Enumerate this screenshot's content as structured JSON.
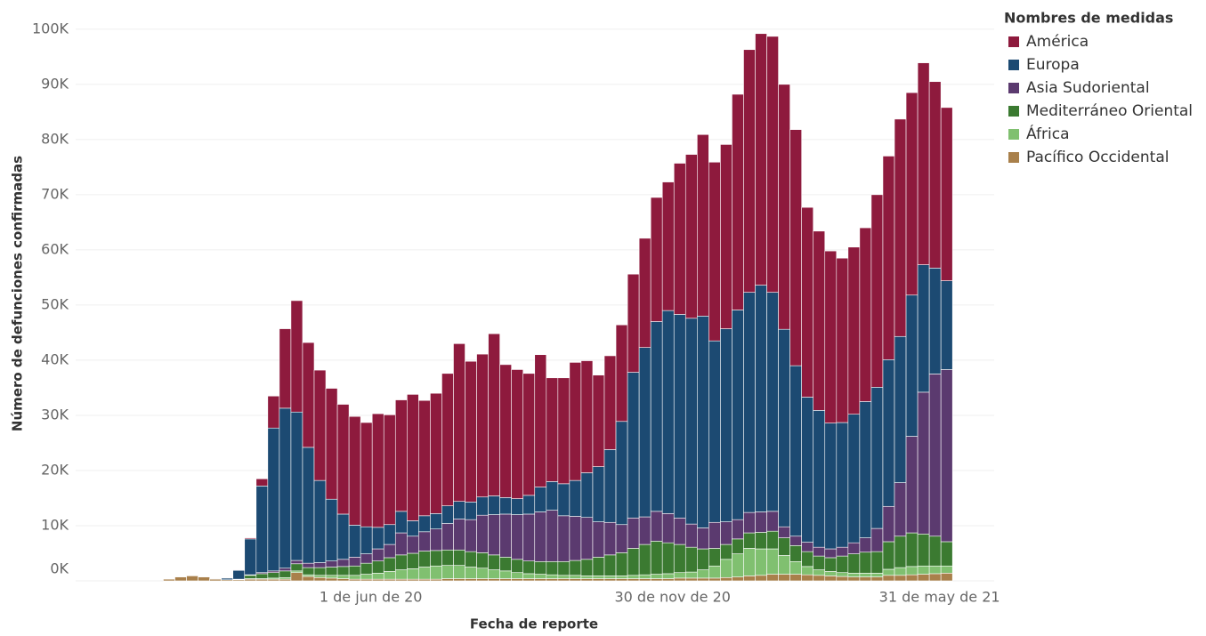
{
  "chart_data": {
    "type": "stacked_bar",
    "x_label": "Fecha de reporte",
    "y_label": "Número de defunciones confirmadas",
    "legend_title": "Nombres de medidas",
    "legend": "right",
    "grid": true,
    "categories": [
      null,
      null,
      null,
      null,
      null,
      null,
      null,
      null,
      null,
      null,
      null,
      null,
      null,
      null,
      null,
      null,
      null,
      "1 de jun de 20",
      null,
      null,
      null,
      null,
      null,
      null,
      null,
      null,
      null,
      null,
      null,
      null,
      null,
      null,
      null,
      null,
      null,
      null,
      null,
      null,
      null,
      null,
      null,
      null,
      null,
      "30 de nov de 20",
      null,
      null,
      null,
      null,
      null,
      null,
      null,
      null,
      null,
      null,
      null,
      null,
      null,
      null,
      null,
      null,
      null,
      null,
      null,
      null,
      null,
      null,
      "31 de may de 21",
      null
    ],
    "ylim": [
      0,
      104000
    ],
    "yticks": [
      {
        "value": 0,
        "label": "0K"
      },
      {
        "value": 10000,
        "label": "10K"
      },
      {
        "value": 20000,
        "label": "20K"
      },
      {
        "value": 30000,
        "label": "30K"
      },
      {
        "value": 40000,
        "label": "40K"
      },
      {
        "value": 50000,
        "label": "50K"
      },
      {
        "value": 60000,
        "label": "60K"
      },
      {
        "value": 70000,
        "label": "70K"
      },
      {
        "value": 80000,
        "label": "80K"
      },
      {
        "value": 90000,
        "label": "90K"
      },
      {
        "value": 100000,
        "label": "100K"
      }
    ],
    "series": [
      {
        "name": "América",
        "color": "#8e1a3d",
        "values": [
          0,
          0,
          0,
          0,
          0,
          100,
          100,
          200,
          1300,
          5800,
          14400,
          20200,
          19000,
          20000,
          20100,
          19900,
          19700,
          18900,
          20600,
          19900,
          20200,
          22900,
          20900,
          21800,
          24000,
          28600,
          25500,
          25900,
          29400,
          24100,
          23400,
          22100,
          24000,
          18800,
          19200,
          21400,
          20300,
          16600,
          17000,
          17500,
          17800,
          19800,
          22500,
          23300,
          27400,
          29700,
          32900,
          32400,
          33400,
          39100,
          44000,
          45600,
          46400,
          44400,
          42800,
          34400,
          32500,
          31200,
          29800,
          30300,
          31500,
          34900,
          36900,
          39400,
          36700,
          36600,
          33800,
          31400
        ]
      },
      {
        "name": "Europa",
        "color": "#1c4a72",
        "values": [
          0,
          0,
          0,
          0,
          100,
          300,
          1600,
          6500,
          15700,
          25900,
          29000,
          26900,
          21000,
          14900,
          11200,
          8200,
          5800,
          4900,
          3900,
          3600,
          3900,
          2800,
          2900,
          2800,
          3200,
          3200,
          3200,
          3300,
          3400,
          3000,
          2900,
          3400,
          4500,
          5200,
          5800,
          6500,
          8100,
          10000,
          13200,
          18700,
          26400,
          30700,
          34400,
          36800,
          36900,
          37300,
          38400,
          32900,
          35000,
          38000,
          39900,
          41100,
          39700,
          35800,
          30900,
          26300,
          24800,
          22800,
          22600,
          23300,
          24700,
          25600,
          26600,
          26500,
          25600,
          23100,
          19200,
          16100
        ]
      },
      {
        "name": "Asia Sudoriental",
        "color": "#5b3a6f",
        "values": [
          0,
          0,
          0,
          0,
          0,
          0,
          0,
          100,
          200,
          300,
          500,
          600,
          800,
          900,
          1100,
          1300,
          1600,
          1700,
          2200,
          2400,
          4000,
          3100,
          3500,
          3900,
          4800,
          5600,
          5800,
          6800,
          7300,
          7800,
          8100,
          8500,
          9000,
          9300,
          8300,
          8000,
          7600,
          6400,
          5900,
          5100,
          5500,
          5000,
          5400,
          5300,
          4800,
          4200,
          3800,
          4700,
          4100,
          3500,
          3700,
          3700,
          3600,
          2000,
          1700,
          1700,
          1600,
          1600,
          1600,
          2000,
          2600,
          4200,
          6400,
          9700,
          17500,
          25700,
          29400,
          31200
        ]
      },
      {
        "name": "Mediterráneo Oriental",
        "color": "#3b7a31",
        "values": [
          0,
          0,
          0,
          0,
          0,
          0,
          100,
          600,
          900,
          1000,
          1200,
          1300,
          1300,
          1400,
          1500,
          1600,
          1700,
          2000,
          2200,
          2500,
          2700,
          2800,
          2900,
          2800,
          2800,
          2800,
          2800,
          2800,
          2700,
          2500,
          2400,
          2300,
          2300,
          2400,
          2500,
          2700,
          3000,
          3400,
          3800,
          4200,
          4900,
          5500,
          6000,
          5600,
          5100,
          4500,
          3800,
          3200,
          2700,
          2700,
          2800,
          3000,
          3200,
          3200,
          2900,
          2700,
          2500,
          2500,
          3000,
          3500,
          3800,
          3900,
          5000,
          5700,
          6100,
          5800,
          5400,
          4400
        ]
      },
      {
        "name": "África",
        "color": "#80c070",
        "values": [
          0,
          0,
          0,
          0,
          0,
          0,
          0,
          100,
          100,
          200,
          300,
          300,
          300,
          400,
          500,
          600,
          700,
          900,
          1100,
          1400,
          1700,
          1900,
          2200,
          2400,
          2400,
          2400,
          2100,
          1900,
          1600,
          1400,
          1100,
          900,
          800,
          700,
          600,
          600,
          500,
          500,
          500,
          500,
          600,
          700,
          800,
          900,
          1000,
          1100,
          1500,
          2200,
          3300,
          4200,
          5000,
          4800,
          4600,
          3400,
          2300,
          1500,
          1000,
          800,
          700,
          700,
          700,
          700,
          1100,
          1400,
          1500,
          1500,
          1400,
          1300
        ]
      },
      {
        "name": "Pacífico Occidental",
        "color": "#a9804b",
        "values": [
          300,
          700,
          900,
          700,
          300,
          200,
          200,
          300,
          300,
          300,
          300,
          1500,
          800,
          600,
          500,
          400,
          300,
          300,
          300,
          300,
          300,
          300,
          300,
          300,
          400,
          400,
          400,
          400,
          400,
          400,
          400,
          400,
          400,
          400,
          400,
          400,
          400,
          400,
          400,
          400,
          400,
          400,
          400,
          400,
          500,
          500,
          500,
          500,
          600,
          700,
          900,
          1000,
          1200,
          1200,
          1200,
          1100,
          1000,
          900,
          800,
          700,
          700,
          700,
          1000,
          1000,
          1100,
          1200,
          1300,
          1400
        ]
      }
    ]
  }
}
